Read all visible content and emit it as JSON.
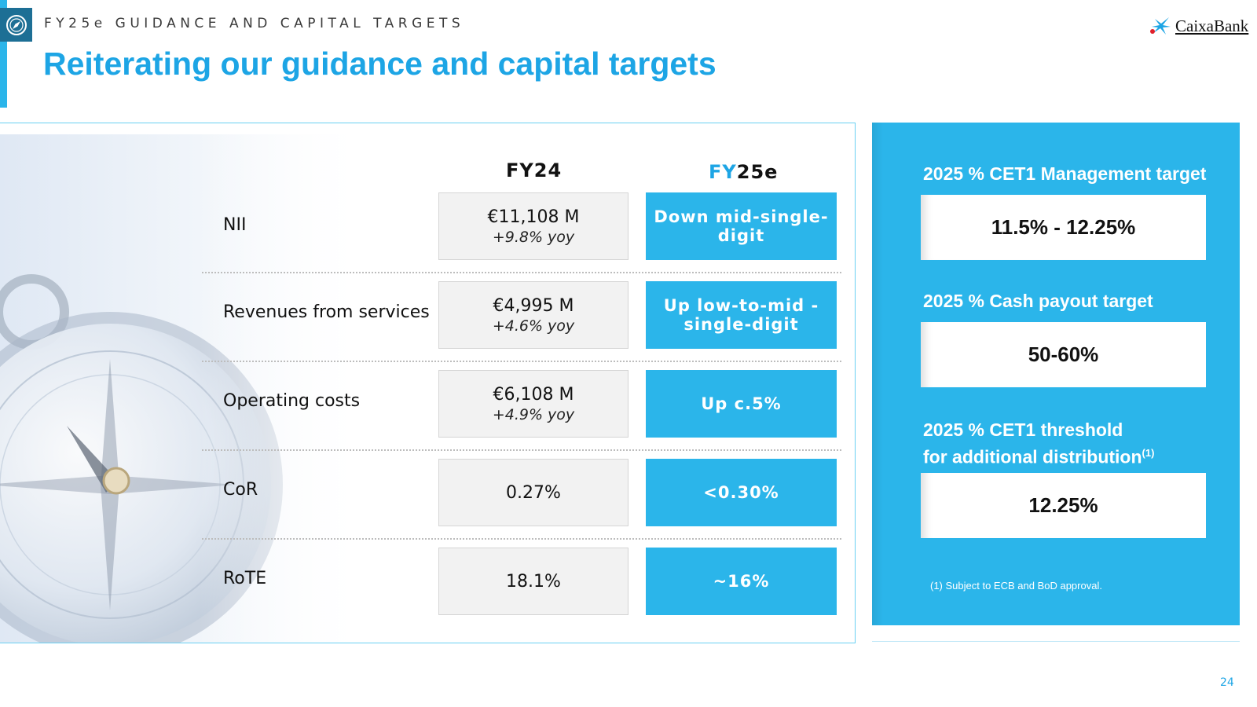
{
  "header": {
    "section_label": "FY25e GUIDANCE AND CAPITAL TARGETS",
    "title": "Reiterating our guidance and capital targets",
    "brand": "CaixaBank"
  },
  "table": {
    "col_fy24": "FY24",
    "col_fy25_prefix": "FY",
    "col_fy25_suffix": "25e",
    "rows": [
      {
        "label": "NII",
        "fy24": "€11,108 M",
        "fy24_sub": "+9.8% yoy",
        "fy25": "Down mid-single-digit"
      },
      {
        "label": "Revenues from services",
        "fy24": "€4,995 M",
        "fy24_sub": "+4.6% yoy",
        "fy25": "Up low-to-mid -single-digit"
      },
      {
        "label": "Operating costs",
        "fy24": "€6,108 M",
        "fy24_sub": "+4.9% yoy",
        "fy25": "Up c.5%"
      },
      {
        "label": "CoR",
        "fy24": "0.27%",
        "fy25": "<0.30%"
      },
      {
        "label": "RoTE",
        "fy24": "18.1%",
        "fy25": "~16%"
      }
    ]
  },
  "targets": {
    "cet1_title": "2025 % CET1 Management target",
    "cet1_value": "11.5% - 12.25%",
    "payout_title": "2025 % Cash payout target",
    "payout_value": "50-60%",
    "threshold_title_line1": "2025 % CET1 threshold",
    "threshold_title_line2": "for additional distribution",
    "threshold_sup": "(1)",
    "threshold_value": "12.25%",
    "footnote": "(1) Subject to ECB and BoD approval."
  },
  "page_number": "24",
  "colors": {
    "accent": "#2bb5ea",
    "title": "#1da5e5",
    "badge": "#1d6f95"
  }
}
